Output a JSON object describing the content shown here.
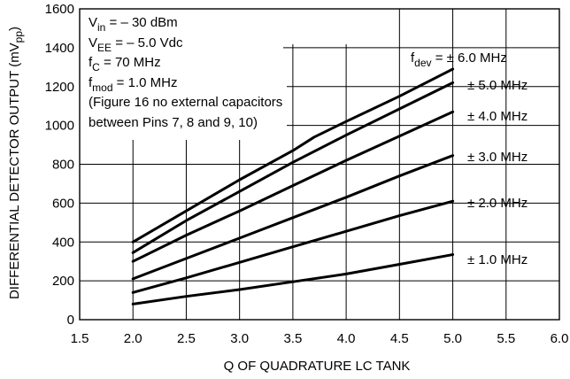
{
  "chart_data": {
    "type": "line",
    "xlabel": "Q OF QUADRATURE LC TANK",
    "ylabel": "DIFFERENTIAL DETECTOR OUTPUT (mV",
    "ylabel_sub": "pp",
    "ylabel_close": ")",
    "xlim": [
      1.5,
      6.0
    ],
    "ylim": [
      0,
      1600
    ],
    "xticks": [
      "1.5",
      "2.0",
      "2.5",
      "3.0",
      "3.5",
      "4.0",
      "4.5",
      "5.0",
      "5.5",
      "6.0"
    ],
    "xtick_values": [
      1.5,
      2.0,
      2.5,
      3.0,
      3.5,
      4.0,
      4.5,
      5.0,
      5.5,
      6.0
    ],
    "yticks": [
      "0",
      "200",
      "400",
      "600",
      "800",
      "1000",
      "1200",
      "1400",
      "1600"
    ],
    "ytick_values": [
      0,
      200,
      400,
      600,
      800,
      1000,
      1200,
      1400,
      1600
    ],
    "grid": true,
    "conditions": [
      {
        "main": "V",
        "sub": "in",
        "rest": " = – 30 dBm"
      },
      {
        "main": "V",
        "sub": "EE",
        "rest": " = – 5.0 Vdc"
      },
      {
        "main": "f",
        "sub": "C",
        "rest": " = 70 MHz"
      },
      {
        "main": "f",
        "sub": "mod",
        "rest": " = 1.0 MHz"
      },
      {
        "main": "(Figure 16 no external capacitors",
        "sub": "",
        "rest": ""
      },
      {
        "main": "between Pins 7, 8 and 9, 10)",
        "sub": "",
        "rest": ""
      }
    ],
    "fdev_prefix_main": "f",
    "fdev_prefix_sub": "dev",
    "fdev_prefix_eq": " =",
    "series": [
      {
        "name": "± 6.0 MHz",
        "x": [
          2.0,
          2.5,
          3.0,
          3.5,
          3.7,
          4.0,
          4.5,
          5.0
        ],
        "y": [
          400,
          560,
          720,
          870,
          940,
          1020,
          1150,
          1290
        ]
      },
      {
        "name": "± 5.0 MHz",
        "x": [
          2.0,
          2.5,
          3.0,
          3.5,
          4.0,
          4.5,
          5.0
        ],
        "y": [
          345,
          510,
          660,
          810,
          950,
          1085,
          1220
        ]
      },
      {
        "name": "± 4.0 MHz",
        "x": [
          2.0,
          2.5,
          3.0,
          3.5,
          4.0,
          4.5,
          5.0
        ],
        "y": [
          300,
          435,
          560,
          690,
          820,
          945,
          1070
        ]
      },
      {
        "name": "± 3.0 MHz",
        "x": [
          2.0,
          2.5,
          3.0,
          3.5,
          4.0,
          4.5,
          5.0
        ],
        "y": [
          210,
          315,
          420,
          525,
          630,
          740,
          845
        ]
      },
      {
        "name": "± 2.0 MHz",
        "x": [
          2.0,
          2.5,
          3.0,
          3.5,
          4.0,
          4.5,
          5.0
        ],
        "y": [
          140,
          215,
          295,
          375,
          455,
          535,
          610
        ]
      },
      {
        "name": "± 1.0 MHz",
        "x": [
          2.0,
          2.5,
          3.0,
          3.5,
          4.0,
          4.5,
          5.0
        ],
        "y": [
          80,
          120,
          155,
          195,
          235,
          285,
          335
        ]
      }
    ]
  }
}
